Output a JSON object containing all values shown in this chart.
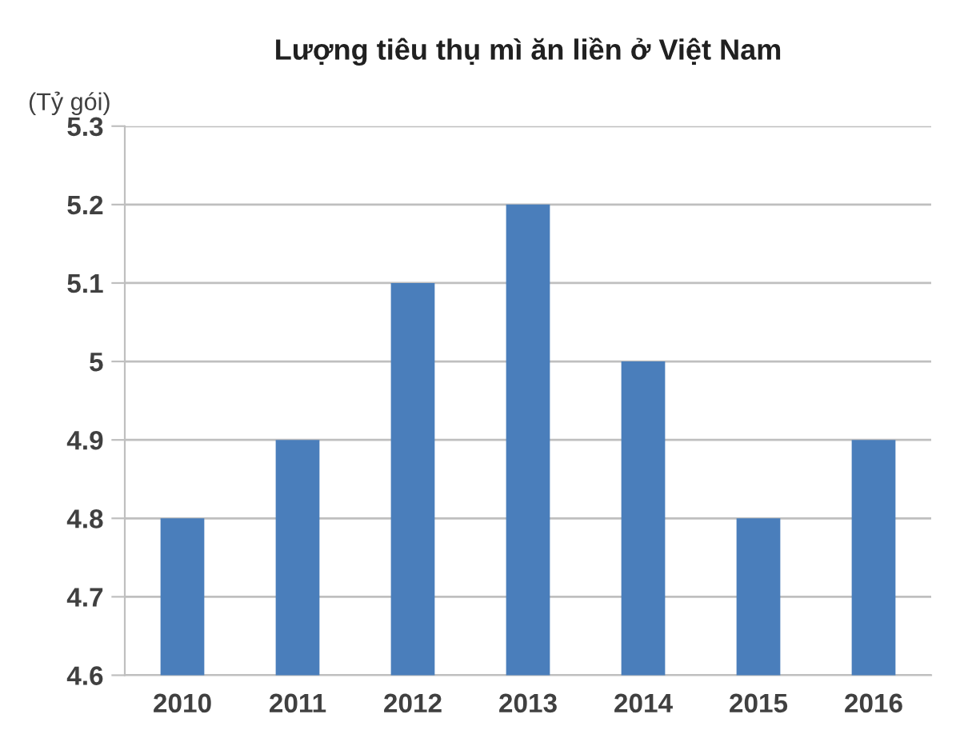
{
  "chart_data": {
    "type": "bar",
    "title": "Lượng tiêu thụ mì ăn liền ở Việt Nam",
    "ylabel": "(Tỷ gói)",
    "categories": [
      "2010",
      "2011",
      "2012",
      "2013",
      "2014",
      "2015",
      "2016"
    ],
    "values": [
      4.8,
      4.9,
      5.1,
      5.2,
      5.0,
      4.8,
      4.9
    ],
    "color": "#4a7ebb",
    "ylim": [
      4.6,
      5.3
    ],
    "yticks": [
      4.6,
      4.7,
      4.8,
      4.9,
      5,
      5.1,
      5.2,
      5.3
    ],
    "grid": "y"
  }
}
